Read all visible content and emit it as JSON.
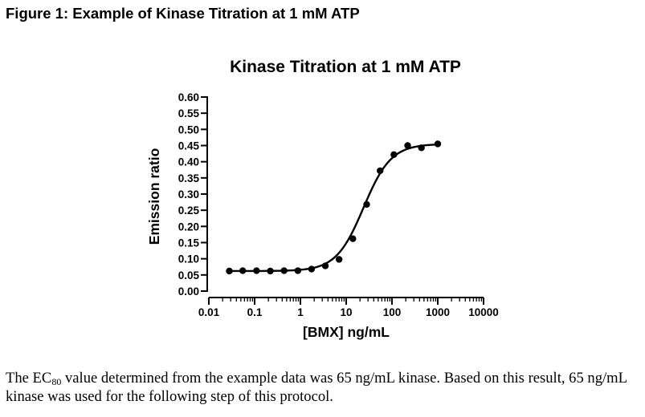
{
  "figure": {
    "heading": "Figure 1: Example of Kinase Titration at 1 mM ATP"
  },
  "caption": {
    "prefix": "The EC",
    "subscript": "80",
    "rest": " value determined from the example data was 65 ng/mL kinase.  Based on this result, 65 ng/mL kinase was used for the following step of this protocol."
  },
  "chart_data": {
    "type": "scatter",
    "title": "Kinase Titration at 1 mM ATP",
    "xlabel": "[BMX] ng/mL",
    "ylabel": "Emission ratio",
    "x_scale": "log",
    "xlim": [
      0.01,
      10000
    ],
    "ylim": [
      0,
      0.6
    ],
    "x_ticks": [
      0.01,
      0.1,
      1,
      10,
      100,
      1000,
      10000
    ],
    "x_tick_labels": [
      "0.01",
      "0.1",
      "1",
      "10",
      "100",
      "1000",
      "10000"
    ],
    "y_ticks": [
      0,
      0.05,
      0.1,
      0.15,
      0.2,
      0.25,
      0.3,
      0.35,
      0.4,
      0.45,
      0.5,
      0.55,
      0.6
    ],
    "y_tick_labels": [
      "0.00",
      "0.05",
      "0.10",
      "0.15",
      "0.20",
      "0.25",
      "0.30",
      "0.35",
      "0.40",
      "0.45",
      "0.50",
      "0.55",
      "0.60"
    ],
    "grid": false,
    "legend": "none",
    "series": [
      {
        "x": [
          0.028,
          0.055,
          0.11,
          0.22,
          0.44,
          0.88,
          1.75,
          3.5,
          7,
          14,
          28,
          55,
          110,
          220,
          440,
          1000
        ],
        "y": [
          0.062,
          0.063,
          0.063,
          0.062,
          0.063,
          0.063,
          0.068,
          0.078,
          0.098,
          0.162,
          0.268,
          0.372,
          0.422,
          0.45,
          0.443,
          0.455
        ],
        "fit": "sigmoidal dose-response",
        "fit_params": {
          "bottom": 0.062,
          "top": 0.455,
          "ec50": 24,
          "hill": 1.45
        },
        "color": "#000000"
      }
    ]
  }
}
